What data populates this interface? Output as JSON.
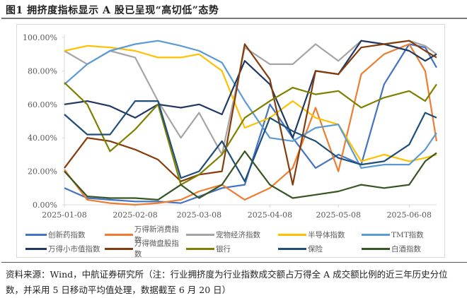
{
  "figure": {
    "title": "图1  拥挤度指标显示 A 股已呈现“高切低”态势",
    "source_note": "资料来源：Wind，中航证券研究所（注：行业拥挤度为行业指数成交额占万得全 A 成交额比例的近三年历史分位数，并采用 5 日移动平均值处理，数据截至 6 月 20 日）"
  },
  "chart_data": {
    "type": "line",
    "title": "拥挤度指标显示 A 股已呈现“高切低”态势",
    "xlabel": "",
    "ylabel": "",
    "ylim": [
      0,
      100
    ],
    "y_ticks": [
      "0.00%",
      "20.00%",
      "40.00%",
      "60.00%",
      "80.00%",
      "100.00%"
    ],
    "x_ticks": [
      "2025-01-08",
      "2025-02-08",
      "2025-03-08",
      "2025-04-08",
      "2025-05-08",
      "2025-06-08"
    ],
    "x": [
      "2025-01-08",
      "2025-01-18",
      "2025-01-28",
      "2025-02-08",
      "2025-02-18",
      "2025-02-28",
      "2025-03-08",
      "2025-03-18",
      "2025-03-28",
      "2025-04-08",
      "2025-04-18",
      "2025-04-28",
      "2025-05-08",
      "2025-05-18",
      "2025-05-28",
      "2025-06-08",
      "2025-06-15",
      "2025-06-20"
    ],
    "grid": false,
    "legend_position": "bottom",
    "series": [
      {
        "name": "创新药指数",
        "color": "#4472C4",
        "values": [
          10,
          4,
          3,
          2,
          2,
          1,
          5,
          10,
          12,
          60,
          40,
          22,
          30,
          24,
          72,
          96,
          94,
          82
        ]
      },
      {
        "name": "万得新消费指数",
        "color": "#ED7D31",
        "values": [
          21,
          3,
          1,
          0,
          1,
          3,
          8,
          12,
          3,
          10,
          22,
          58,
          20,
          78,
          90,
          96,
          80,
          38
        ]
      },
      {
        "name": "宠物经济指数",
        "color": "#A5A5A5",
        "values": [
          92,
          84,
          92,
          88,
          62,
          40,
          55,
          30,
          94,
          84,
          84,
          96,
          86,
          98,
          96,
          98,
          95,
          90
        ]
      },
      {
        "name": "半导体指数",
        "color": "#FFC000",
        "values": [
          92,
          95,
          94,
          92,
          88,
          88,
          90,
          80,
          46,
          52,
          62,
          52,
          48,
          26,
          30,
          26,
          28,
          30
        ]
      },
      {
        "name": "TMT指数",
        "color": "#5B9BD5",
        "values": [
          72,
          84,
          92,
          96,
          98,
          95,
          92,
          85,
          62,
          40,
          38,
          46,
          48,
          22,
          24,
          24,
          33,
          43
        ]
      },
      {
        "name": "万得小市值指数",
        "color": "#1F3864",
        "values": [
          60,
          62,
          59,
          52,
          60,
          58,
          60,
          54,
          86,
          72,
          40,
          80,
          78,
          98,
          96,
          92,
          86,
          90
        ]
      },
      {
        "name": "万得微盘股指数",
        "color": "#843C0C",
        "values": [
          22,
          40,
          38,
          33,
          27,
          14,
          18,
          20,
          96,
          75,
          12,
          80,
          78,
          94,
          96,
          98,
          92,
          88
        ]
      },
      {
        "name": "银行",
        "color": "#7F7F00",
        "values": [
          73,
          60,
          32,
          45,
          60,
          12,
          18,
          30,
          52,
          62,
          70,
          66,
          68,
          58,
          64,
          68,
          62,
          72
        ]
      },
      {
        "name": "保险",
        "color": "#1F4E79",
        "values": [
          54,
          42,
          42,
          62,
          62,
          16,
          20,
          38,
          14,
          52,
          44,
          38,
          28,
          24,
          26,
          36,
          55,
          52
        ]
      },
      {
        "name": "白酒指数",
        "color": "#375623",
        "values": [
          20,
          5,
          4,
          4,
          3,
          12,
          4,
          12,
          32,
          12,
          4,
          6,
          8,
          12,
          10,
          12,
          26,
          31
        ]
      }
    ]
  },
  "legend": {
    "rows": [
      [
        {
          "label": "创新药指数",
          "color": "#4472C4"
        },
        {
          "label": "万得新消费指数",
          "color": "#ED7D31"
        },
        {
          "label": "宠物经济指数",
          "color": "#A5A5A5"
        },
        {
          "label": "半导体指数",
          "color": "#FFC000"
        },
        {
          "label": "TMT指数",
          "color": "#5B9BD5"
        }
      ],
      [
        {
          "label": "万得小市值指数",
          "color": "#1F3864"
        },
        {
          "label": "万得微盘股指数",
          "color": "#843C0C"
        },
        {
          "label": "银行",
          "color": "#7F7F00"
        },
        {
          "label": "保险",
          "color": "#1F4E79"
        },
        {
          "label": "白酒指数",
          "color": "#375623"
        }
      ]
    ]
  }
}
